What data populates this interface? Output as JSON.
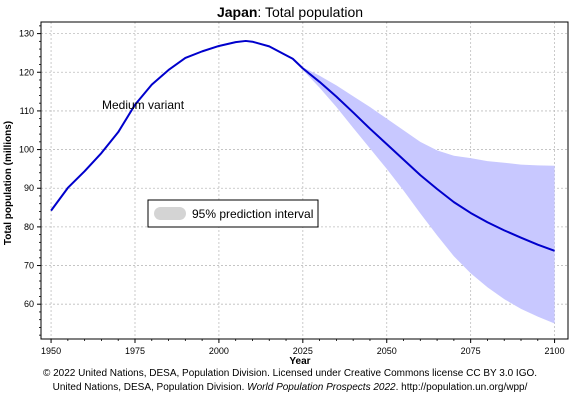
{
  "chart_data": {
    "type": "area",
    "title_bold": "Japan",
    "title_rest": ": Total population",
    "xlabel": "Year",
    "ylabel": "Total population (millions)",
    "xlim": [
      1947,
      2104
    ],
    "ylim": [
      51,
      133
    ],
    "x_ticks": [
      1950,
      1975,
      2000,
      2025,
      2050,
      2075,
      2100
    ],
    "y_ticks": [
      60,
      70,
      80,
      90,
      100,
      110,
      120,
      130
    ],
    "x_tick_labels": [
      "1950",
      "1975",
      "2000",
      "2025",
      "2050",
      "2075",
      "2100"
    ],
    "y_tick_labels": [
      "60",
      "70",
      "80",
      "90",
      "100",
      "110",
      "120",
      "130"
    ],
    "grid": true,
    "colors": {
      "line": "#0000cc",
      "band": "#c8c8ff",
      "legend_swatch": "#d4d4d4",
      "grid": "#bdbdbd"
    },
    "series": [
      {
        "name": "Medium variant",
        "x": [
          1950,
          1955,
          1960,
          1965,
          1970,
          1975,
          1980,
          1985,
          1990,
          1995,
          2000,
          2005,
          2008,
          2010,
          2015,
          2020,
          2022,
          2025,
          2030,
          2035,
          2040,
          2045,
          2050,
          2055,
          2060,
          2065,
          2070,
          2075,
          2080,
          2085,
          2090,
          2095,
          2100
        ],
        "values": [
          84.2,
          90.1,
          94.4,
          99.1,
          104.5,
          111.6,
          116.8,
          120.6,
          123.7,
          125.4,
          126.8,
          127.8,
          128.1,
          127.9,
          126.7,
          124.4,
          123.5,
          121.0,
          117.5,
          113.7,
          109.6,
          105.4,
          101.4,
          97.4,
          93.4,
          89.8,
          86.4,
          83.6,
          81.2,
          79.1,
          77.2,
          75.4,
          73.8
        ]
      }
    ],
    "prediction_interval": {
      "name": "95% prediction interval",
      "x": [
        2022,
        2025,
        2030,
        2035,
        2040,
        2045,
        2050,
        2055,
        2060,
        2065,
        2070,
        2075,
        2080,
        2085,
        2090,
        2095,
        2100
      ],
      "upper": [
        123.5,
        121.3,
        119.1,
        116.6,
        113.8,
        111.0,
        108.0,
        105.0,
        102.0,
        99.8,
        98.4,
        97.8,
        97.0,
        96.6,
        96.1,
        95.9,
        95.8
      ],
      "lower": [
        123.5,
        120.6,
        116.0,
        111.0,
        105.6,
        100.3,
        95.0,
        89.4,
        83.5,
        77.8,
        72.4,
        68.0,
        64.4,
        61.3,
        58.8,
        56.8,
        55.0
      ]
    },
    "annotations": [
      "Medium variant"
    ],
    "legend_placement": "middle-left"
  },
  "credits": {
    "line1": "© 2022 United Nations, DESA, Population Division. Licensed under Creative Commons license CC BY 3.0 IGO.",
    "line2_prefix": "United Nations, DESA, Population Division. ",
    "line2_italic": "World Population Prospects 2022",
    "line2_suffix": ". http://population.un.org/wpp/"
  }
}
